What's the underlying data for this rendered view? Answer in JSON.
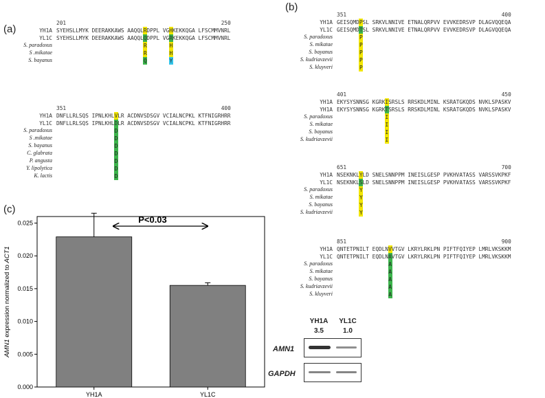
{
  "panels": {
    "a": "(a)",
    "b": "(b)",
    "c": "(c)"
  },
  "panel_a": {
    "blocks": [
      {
        "start": "201",
        "end": "250",
        "ref": [
          {
            "name": "YH1A",
            "seq": "SYEHSLLMYK DEERAKKAWS AAQQLRDPPL VGHKEKKQGA LFSCMMVNRL"
          },
          {
            "name": "YL1C",
            "seq": "SYEHSLLMYK DEERAKKAWS AAQQLQDPPL VGRKEKKQGA LFSCMMVNRL"
          }
        ],
        "species": [
          {
            "name": "S. paradoxus",
            "cols": [
              "R",
              "H"
            ]
          },
          {
            "name": "S .mikatae",
            "cols": [
              "R",
              "H"
            ]
          },
          {
            "name": "S. bayanus",
            "cols": [
              "Q",
              "Y"
            ]
          }
        ]
      },
      {
        "start": "351",
        "end": "400",
        "ref": [
          {
            "name": "YH1A",
            "seq": "DNFLLRLSQS IPNLKHLVLR ACDNVSDSGV VCIALNCPKL KTFNIGRHRR"
          },
          {
            "name": "YL1C",
            "seq": "DNFLLRLSQS IPNLKHLDLR ACDNVSDSGV VCIALNCPKL KTFNIGRHRR"
          }
        ],
        "species": [
          {
            "name": "S. paradoxus",
            "cols": [
              "D"
            ]
          },
          {
            "name": "S .mikatae",
            "cols": [
              "D"
            ]
          },
          {
            "name": "S. bayanus",
            "cols": [
              "D"
            ]
          },
          {
            "name": "C. glabrata",
            "cols": [
              "D"
            ]
          },
          {
            "name": "P. angusta",
            "cols": [
              "D"
            ]
          },
          {
            "name": "Y. lipolytica",
            "cols": [
              "D"
            ]
          },
          {
            "name": "K. lactis",
            "cols": [
              "D"
            ]
          }
        ]
      }
    ]
  },
  "panel_b": {
    "blocks": [
      {
        "start": "351",
        "end": "400",
        "ref": [
          {
            "name": "YH1A",
            "seq": "GEISQMDPSL SRKVLNNIVE ETNALQRPVV EVVKEDRSVP DLAGVQQEQA"
          },
          {
            "name": "YL1C",
            "seq": "GEISQMDTSL SRKVLNNIVE ETNALQRPVV EVVKEDRSVP DLAGVQQEQA"
          }
        ],
        "species": [
          {
            "name": "S. paradoxus",
            "cols": [
              "P"
            ]
          },
          {
            "name": "S. mikatae",
            "cols": [
              "P"
            ]
          },
          {
            "name": "S. bayanus",
            "cols": [
              "P"
            ]
          },
          {
            "name": "S. kudriavzevii",
            "cols": [
              "P"
            ]
          },
          {
            "name": "S. kluyveri",
            "cols": [
              "P"
            ]
          }
        ]
      },
      {
        "start": "401",
        "end": "450",
        "ref": [
          {
            "name": "YH1A",
            "seq": "EKYSYSNNSG KGRKISRSLS RRSKDLMINL KSRATGKQDS NVKLSPASKV"
          },
          {
            "name": "YH1A",
            "seq": "EKYSYSNNSG KGRKTSRSLS RRSKDLMINL KSRATGKQDS NVKLSPASKV"
          }
        ],
        "species": [
          {
            "name": "S. paradoxus",
            "cols": [
              "I"
            ]
          },
          {
            "name": "S. mikatae",
            "cols": [
              "I"
            ]
          },
          {
            "name": "S. bayanus",
            "cols": [
              "I"
            ]
          },
          {
            "name": "S. kudriavzevii",
            "cols": [
              "I"
            ]
          }
        ]
      },
      {
        "start": "651",
        "end": "700",
        "ref": [
          {
            "name": "YH1A",
            "seq": "NSEKNKLYLD SNELSNNPPM INEISLGESP PVKHVATASS VARSSVKPKF"
          },
          {
            "name": "YL1C",
            "seq": "NSEKNKLSLD SNELSNNPPM INEISLGESP PVKHVATASS VARSSVKPKF"
          }
        ],
        "species": [
          {
            "name": "S. paradoxus",
            "cols": [
              "Y"
            ]
          },
          {
            "name": "S. mikatae",
            "cols": [
              "Y"
            ]
          },
          {
            "name": "S. bayanus",
            "cols": [
              "Y"
            ]
          },
          {
            "name": "S. kudriavzevii",
            "cols": [
              "Y"
            ]
          }
        ]
      },
      {
        "start": "851",
        "end": "900",
        "ref": [
          {
            "name": "YH1A",
            "seq": "QNTETPNILT EQDLNVVTGV LKRYLRKLPN PIFTFQIYEP LMRLVKSKKM"
          },
          {
            "name": "YL1C",
            "seq": "QNTETPNILT EQDLNAVTGV LKRYLRKLPN PIFTFQIYEP LMRLVKSKKM"
          }
        ],
        "species": [
          {
            "name": "S. paradoxus",
            "cols": [
              "A"
            ]
          },
          {
            "name": "S. mikatae",
            "cols": [
              "A"
            ]
          },
          {
            "name": "S. bayanus",
            "cols": [
              "A"
            ]
          },
          {
            "name": "S. kudriavzevii",
            "cols": [
              "A"
            ]
          },
          {
            "name": "S. kluyveri",
            "cols": [
              "A"
            ]
          }
        ]
      }
    ]
  },
  "western": {
    "col1": "YH1A",
    "col2": "YL1C",
    "val1": "3.5",
    "val2": "1.0",
    "row1": "AMN1",
    "row2": "GAPDH",
    "levels": [
      3.5,
      1.0
    ]
  },
  "colors": {
    "yellow": "#f2e600",
    "green": "#3cb44b",
    "cyan": "#33c3e8",
    "bar": "#808080"
  },
  "chart_data": {
    "type": "bar",
    "categories": [
      "YH1A",
      "YL1C"
    ],
    "values": [
      0.0229,
      0.0155
    ],
    "errors_up": [
      0.0036,
      0.0004
    ],
    "annotation": "P<0.03",
    "ylabel_pre": "AMN1",
    "ylabel_mid": " expression normalized to ",
    "ylabel_post": "ACT1",
    "ylim": [
      0,
      0.025
    ],
    "yticks": [
      "0.000",
      "0.005",
      "0.010",
      "0.015",
      "0.020",
      "0.025"
    ],
    "ytick_values": [
      0,
      0.005,
      0.01,
      0.015,
      0.02,
      0.025
    ]
  }
}
